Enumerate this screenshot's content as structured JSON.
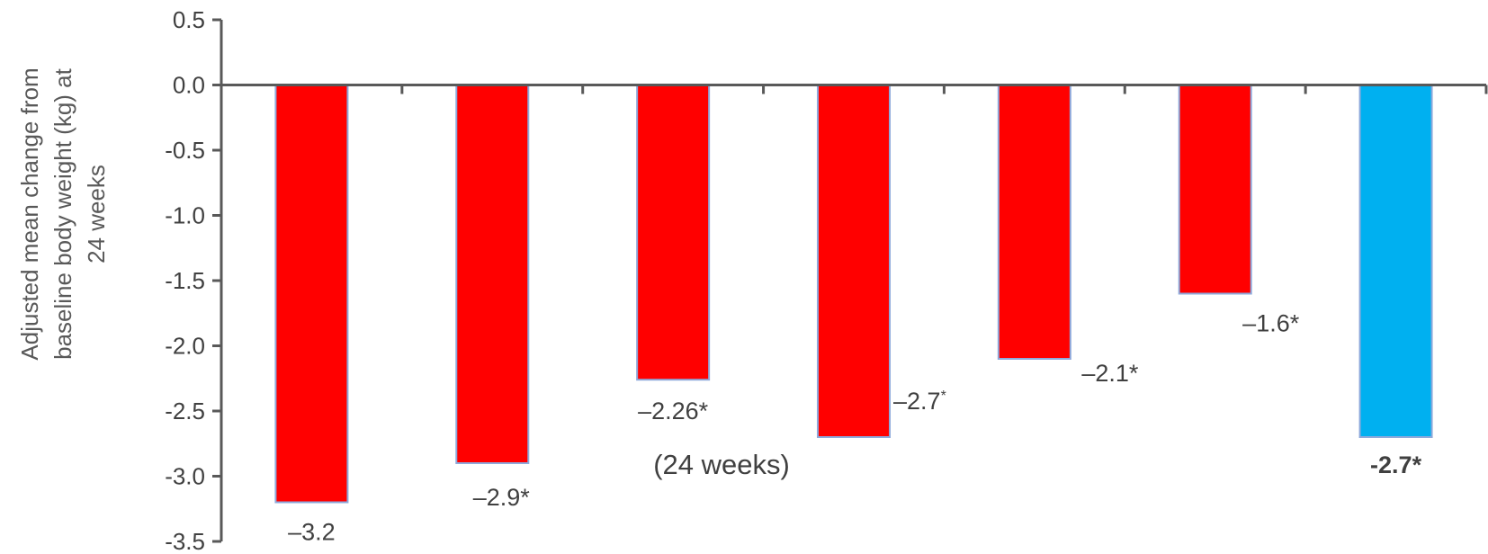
{
  "chart_data": {
    "type": "bar",
    "ylabel": "Adjusted mean change from baseline body weight (kg) at 24 weeks",
    "ylabel_lines": [
      "Adjusted mean change from",
      "baseline body weight (kg) at",
      "24 weeks"
    ],
    "ylim": [
      -3.5,
      0.5
    ],
    "yticks": [
      "0.5",
      "0.0",
      "-0.5",
      "-1.0",
      "-1.5",
      "-2.0",
      "-2.5",
      "-3.0",
      "-3.5"
    ],
    "ytick_values": [
      0.5,
      0.0,
      -0.5,
      -1.0,
      -1.5,
      -2.0,
      -2.5,
      -3.0,
      -3.5
    ],
    "grid": false,
    "values": [
      -3.2,
      -2.9,
      -2.26,
      -2.7,
      -2.1,
      -1.6,
      -2.7
    ],
    "bars": [
      {
        "value": -3.2,
        "label": "–3.2",
        "marker": "",
        "color": "#FF0000"
      },
      {
        "value": -2.9,
        "label": "–2.9",
        "marker": "*",
        "color": "#FF0000"
      },
      {
        "value": -2.26,
        "label": "–2.26",
        "marker": "*",
        "color": "#FF0000"
      },
      {
        "value": -2.7,
        "label": "–2.7",
        "marker": "*",
        "color": "#FF0000"
      },
      {
        "value": -2.1,
        "label": "–2.1",
        "marker": "*",
        "color": "#FF0000"
      },
      {
        "value": -1.6,
        "label": "–1.6",
        "marker": "*",
        "color": "#FF0000"
      },
      {
        "value": -2.7,
        "label": "-2.7",
        "marker": "*",
        "color": "#00B0F0"
      }
    ],
    "annotation": "(24 weeks)",
    "colors": {
      "red_bar": "#FF0000",
      "blue_bar": "#00B0F0",
      "bar_border": "#8EA9DB",
      "axis": "#595959"
    }
  }
}
